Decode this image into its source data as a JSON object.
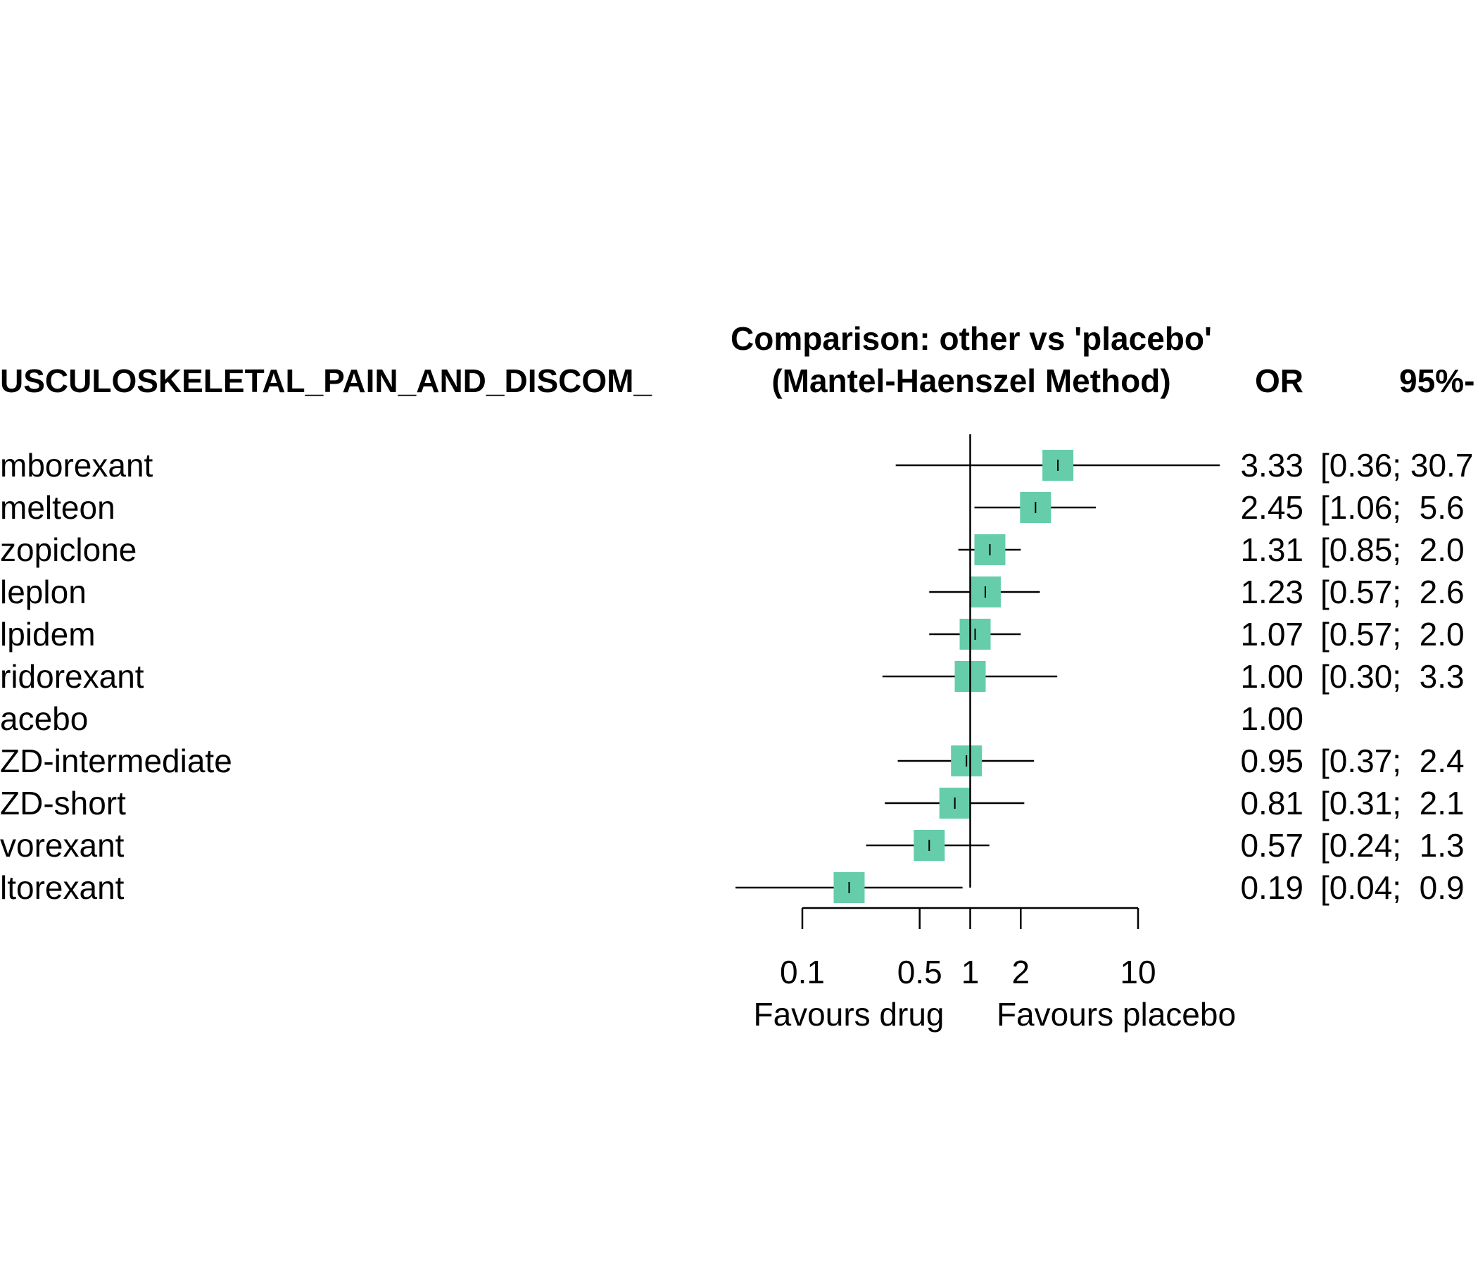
{
  "chart_data": {
    "type": "forest",
    "title": "Comparison: other vs 'placebo'",
    "subtitle": "(Mantel-Haenszel Method)",
    "outcome_header": "USCULOSKELETAL_PAIN_AND_DISCOM_",
    "columns": {
      "estimate": "OR",
      "ci": "95%-"
    },
    "x_scale": "log",
    "xlim": [
      0.1,
      10
    ],
    "reference_value": 1,
    "x_ticks": [
      {
        "value": 0.1,
        "label": "0.1"
      },
      {
        "value": 0.5,
        "label": "0.5"
      },
      {
        "value": 1,
        "label": "1"
      },
      {
        "value": 2,
        "label": "2"
      },
      {
        "value": 10,
        "label": "10"
      }
    ],
    "left_caption": "Favours drug",
    "right_caption": "Favours placebo",
    "marker_color": "#66CDAA",
    "rows": [
      {
        "label": "mborexant",
        "or": 3.33,
        "lower": 0.36,
        "upper": 30.7,
        "or_text": "3.33",
        "ci_text": "[0.36; 30.7"
      },
      {
        "label": "melteon",
        "or": 2.45,
        "lower": 1.06,
        "upper": 5.6,
        "or_text": "2.45",
        "ci_text": "[1.06;  5.6"
      },
      {
        "label": "zopiclone",
        "or": 1.31,
        "lower": 0.85,
        "upper": 2.0,
        "or_text": "1.31",
        "ci_text": "[0.85;  2.0"
      },
      {
        "label": "leplon",
        "or": 1.23,
        "lower": 0.57,
        "upper": 2.6,
        "or_text": "1.23",
        "ci_text": "[0.57;  2.6"
      },
      {
        "label": "lpidem",
        "or": 1.07,
        "lower": 0.57,
        "upper": 2.0,
        "or_text": "1.07",
        "ci_text": "[0.57;  2.0"
      },
      {
        "label": "ridorexant",
        "or": 1.0,
        "lower": 0.3,
        "upper": 3.3,
        "or_text": "1.00",
        "ci_text": "[0.30;  3.3"
      },
      {
        "label": "acebo",
        "or": 1.0,
        "lower": null,
        "upper": null,
        "or_text": "1.00",
        "ci_text": ""
      },
      {
        "label": "ZD-intermediate",
        "or": 0.95,
        "lower": 0.37,
        "upper": 2.4,
        "or_text": "0.95",
        "ci_text": "[0.37;  2.4"
      },
      {
        "label": "ZD-short",
        "or": 0.81,
        "lower": 0.31,
        "upper": 2.1,
        "or_text": "0.81",
        "ci_text": "[0.31;  2.1"
      },
      {
        "label": "vorexant",
        "or": 0.57,
        "lower": 0.24,
        "upper": 1.3,
        "or_text": "0.57",
        "ci_text": "[0.24;  1.3"
      },
      {
        "label": "ltorexant",
        "or": 0.19,
        "lower": 0.04,
        "upper": 0.9,
        "or_text": "0.19",
        "ci_text": "[0.04;  0.9"
      }
    ]
  }
}
